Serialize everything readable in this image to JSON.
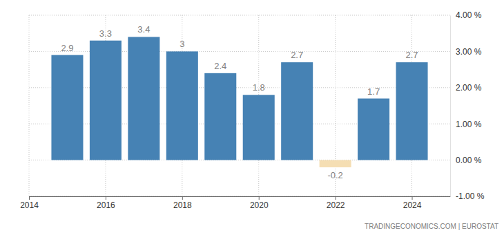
{
  "chart_data": {
    "type": "bar",
    "x": [
      2015,
      2016,
      2017,
      2018,
      2019,
      2020,
      2021,
      2022,
      2023,
      2024
    ],
    "values": [
      2.9,
      3.3,
      3.4,
      3,
      2.4,
      1.8,
      2.7,
      -0.2,
      1.7,
      2.7
    ],
    "colors": [
      "#4682b4",
      "#4682b4",
      "#4682b4",
      "#4682b4",
      "#4682b4",
      "#4682b4",
      "#4682b4",
      "#f5deb3",
      "#4682b4",
      "#4682b4"
    ],
    "xlim": [
      2014,
      2025
    ],
    "xticks": [
      2014,
      2016,
      2018,
      2020,
      2022,
      2024
    ],
    "ylim": [
      -1,
      4
    ],
    "yticks": [
      {
        "value": -1,
        "label": "-1.00 %"
      },
      {
        "value": 0,
        "label": "0.00 %"
      },
      {
        "value": 1,
        "label": "1.00 %"
      },
      {
        "value": 2,
        "label": "2.00 %"
      },
      {
        "value": 3,
        "label": "3.00 %"
      },
      {
        "value": 4,
        "label": "4.00 %"
      }
    ],
    "grid": true,
    "data_labels": true,
    "source": "TRADINGECONOMICS.COM | EUROSTAT"
  }
}
